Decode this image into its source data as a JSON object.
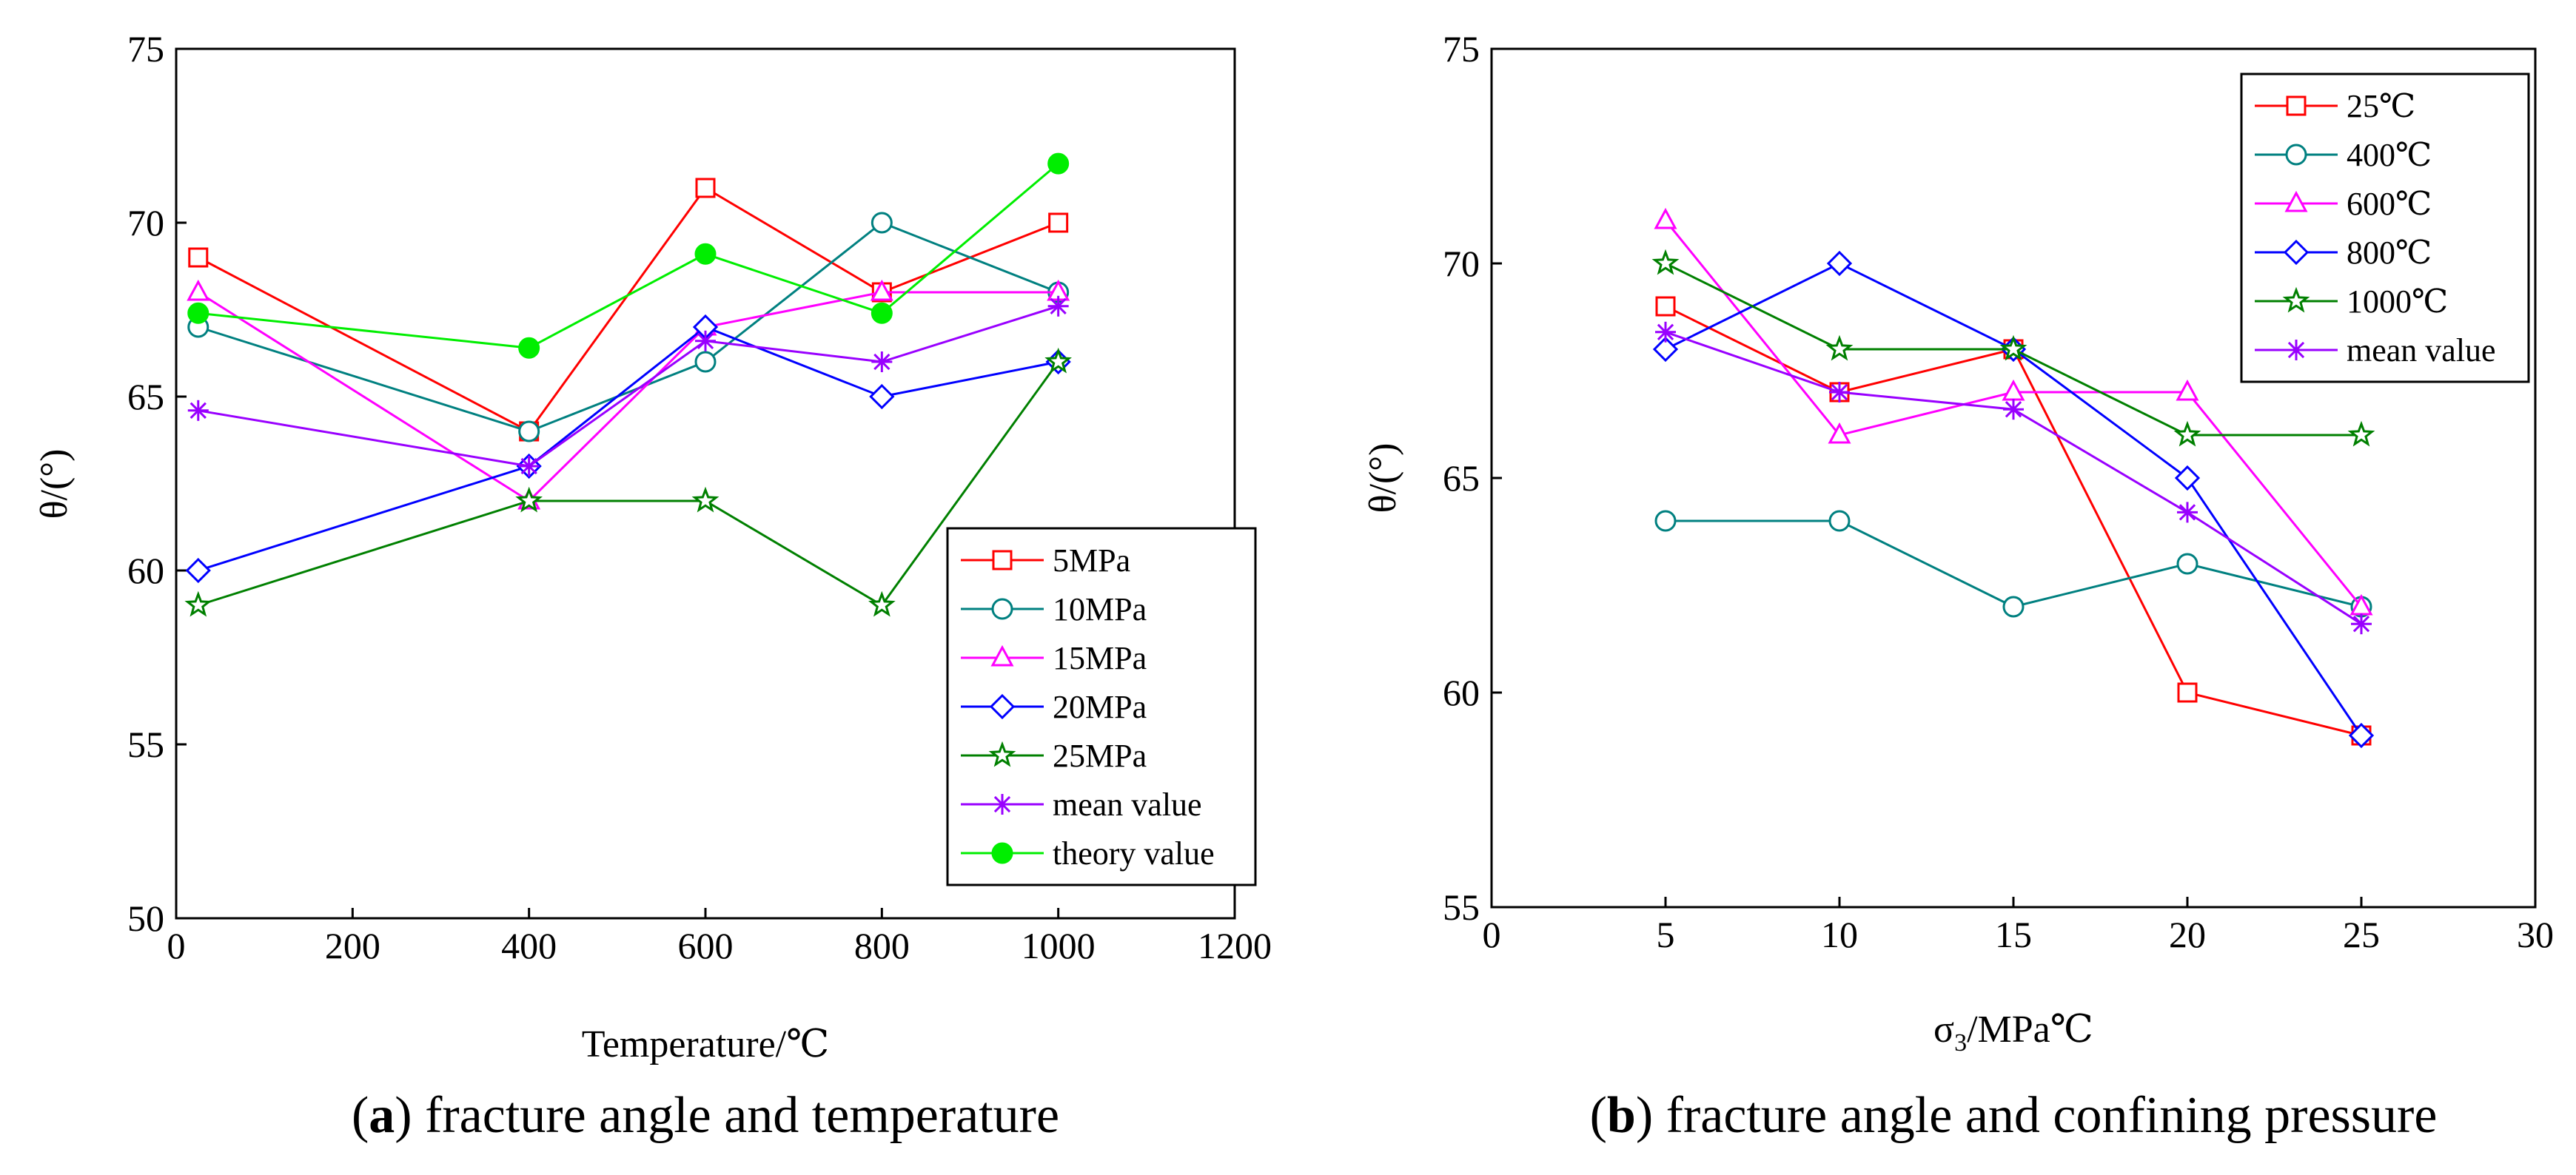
{
  "chart_data": [
    {
      "type": "line",
      "title": "",
      "caption_letter": "a",
      "caption_text": "fracture angle and temperature",
      "xlabel": "Temperature/℃",
      "ylabel": "θ/(°)",
      "xlim": [
        0,
        1200
      ],
      "ylim": [
        50,
        75
      ],
      "xticks": [
        0,
        200,
        400,
        600,
        800,
        1000,
        1200
      ],
      "yticks": [
        50,
        55,
        60,
        65,
        70,
        75
      ],
      "legend_position": "bottom-right",
      "series": [
        {
          "name": "5MPa",
          "color": "#ff0000",
          "marker": "square",
          "x": [
            25,
            400,
            600,
            800,
            1000
          ],
          "values": [
            69,
            64,
            71,
            68,
            70
          ]
        },
        {
          "name": "10MPa",
          "color": "#008080",
          "marker": "circle",
          "x": [
            25,
            400,
            600,
            800,
            1000
          ],
          "values": [
            67,
            64,
            66,
            70,
            68
          ]
        },
        {
          "name": "15MPa",
          "color": "#ff00ff",
          "marker": "triangle",
          "x": [
            25,
            400,
            600,
            800,
            1000
          ],
          "values": [
            68,
            62,
            67,
            68,
            68
          ]
        },
        {
          "name": "20MPa",
          "color": "#0000ff",
          "marker": "diamond",
          "x": [
            25,
            400,
            600,
            800,
            1000
          ],
          "values": [
            60,
            63,
            67,
            65,
            66
          ]
        },
        {
          "name": "25MPa",
          "color": "#008000",
          "marker": "star",
          "x": [
            25,
            400,
            600,
            800,
            1000
          ],
          "values": [
            59,
            62,
            62,
            59,
            66
          ]
        },
        {
          "name": "mean value",
          "color": "#9900ff",
          "marker": "asterisk",
          "x": [
            25,
            400,
            600,
            800,
            1000
          ],
          "values": [
            64.6,
            63,
            66.6,
            66,
            67.6
          ]
        },
        {
          "name": "theory value",
          "color": "#00ee00",
          "marker": "filled-circle",
          "x": [
            25,
            400,
            600,
            800,
            1000
          ],
          "values": [
            67.4,
            66.4,
            69.1,
            67.4,
            71.7
          ]
        }
      ]
    },
    {
      "type": "line",
      "title": "",
      "caption_letter": "b",
      "caption_text": "fracture angle and confining pressure",
      "xlabel_main": "σ",
      "xlabel_sub": "3",
      "xlabel_rest": "/MPa℃",
      "ylabel": "θ/(°)",
      "xlim": [
        0,
        30
      ],
      "ylim": [
        55,
        75
      ],
      "xticks": [
        0,
        5,
        10,
        15,
        20,
        25,
        30
      ],
      "yticks": [
        55,
        60,
        65,
        70,
        75
      ],
      "legend_position": "top-right",
      "series": [
        {
          "name": "25℃",
          "color": "#ff0000",
          "marker": "square",
          "x": [
            5,
            10,
            15,
            20,
            25
          ],
          "values": [
            69,
            67,
            68,
            60,
            59
          ]
        },
        {
          "name": "400℃",
          "color": "#008080",
          "marker": "circle",
          "x": [
            5,
            10,
            15,
            20,
            25
          ],
          "values": [
            64,
            64,
            62,
            63,
            62
          ]
        },
        {
          "name": "600℃",
          "color": "#ff00ff",
          "marker": "triangle",
          "x": [
            5,
            10,
            15,
            20,
            25
          ],
          "values": [
            71,
            66,
            67,
            67,
            62
          ]
        },
        {
          "name": "800℃",
          "color": "#0000ff",
          "marker": "diamond",
          "x": [
            5,
            10,
            15,
            20,
            25
          ],
          "values": [
            68,
            70,
            68,
            65,
            59
          ]
        },
        {
          "name": "1000℃",
          "color": "#008000",
          "marker": "star",
          "x": [
            5,
            10,
            15,
            20,
            25
          ],
          "values": [
            70,
            68,
            68,
            66,
            66
          ]
        },
        {
          "name": "mean value",
          "color": "#9900ff",
          "marker": "asterisk",
          "x": [
            5,
            10,
            15,
            20,
            25
          ],
          "values": [
            68.4,
            67,
            66.6,
            64.2,
            61.6
          ]
        }
      ]
    }
  ]
}
